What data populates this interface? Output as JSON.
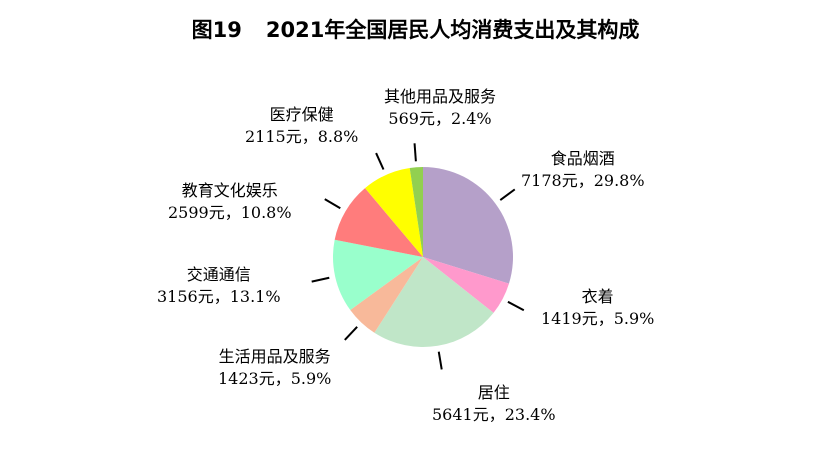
{
  "chart_data": {
    "type": "pie",
    "title_prefix": "图19",
    "title": "2021年全国居民人均消费支出及其构成",
    "start": "top",
    "direction": "clockwise",
    "slices": [
      {
        "name": "食品烟酒",
        "value": 7178,
        "percent": "29.8%",
        "value_label": "7178元，29.8%",
        "color": "#b5a0c9"
      },
      {
        "name": "衣着",
        "value": 1419,
        "percent": "5.9%",
        "value_label": "1419元，5.9%",
        "color": "#ff99cc"
      },
      {
        "name": "居住",
        "value": 5641,
        "percent": "23.4%",
        "value_label": "5641元，23.4%",
        "color": "#c0e6c8"
      },
      {
        "name": "生活用品及服务",
        "value": 1423,
        "percent": "5.9%",
        "value_label": "1423元，5.9%",
        "color": "#f8b99a"
      },
      {
        "name": "交通通信",
        "value": 3156,
        "percent": "13.1%",
        "value_label": "3156元，13.1%",
        "color": "#99ffcc"
      },
      {
        "name": "教育文化娱乐",
        "value": 2599,
        "percent": "10.8%",
        "value_label": "2599元，10.8%",
        "color": "#ff7c7c"
      },
      {
        "name": "医疗保健",
        "value": 2115,
        "percent": "8.8%",
        "value_label": "2115元，8.8%",
        "color": "#ffff00"
      },
      {
        "name": "其他用品及服务",
        "value": 569,
        "percent": "2.4%",
        "value_label": "569元，2.4%",
        "color": "#92d050"
      }
    ]
  }
}
